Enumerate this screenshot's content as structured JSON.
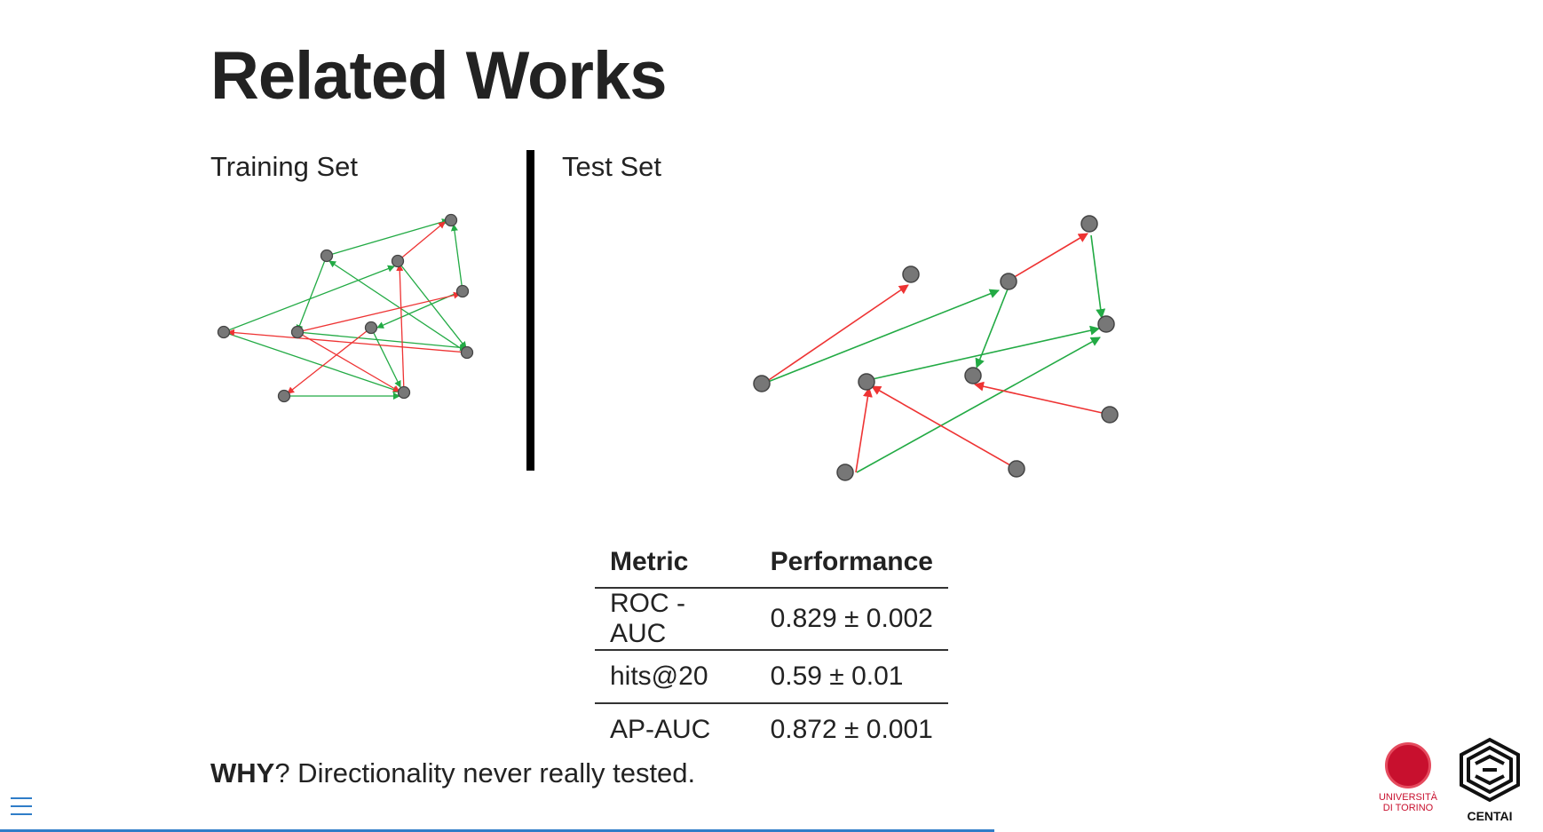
{
  "slide": {
    "title": "Related Works",
    "training_label": "Training Set",
    "test_label": "Test Set",
    "why_bold": "WHY",
    "why_text": "? Directionality never really tested."
  },
  "table": {
    "headers": [
      "Metric",
      "Performance"
    ],
    "rows": [
      [
        "ROC -AUC",
        "0.829 ± 0.002"
      ],
      [
        "hits@20",
        "0.59 ± 0.01"
      ],
      [
        "AP-AUC",
        "0.872 ± 0.001"
      ]
    ]
  },
  "logos": {
    "unito": [
      "UNIVERSITÀ",
      "DI TORINO"
    ],
    "centai": "CENTAI"
  },
  "colors": {
    "positive_edge": "#22aa44",
    "negative_edge": "#ee3333",
    "node_fill": "#777777",
    "node_stroke": "#444444",
    "accent": "#2f7dc8",
    "unito_red": "#c8102e"
  },
  "icons": {
    "menu": "hamburger-menu-icon"
  }
}
